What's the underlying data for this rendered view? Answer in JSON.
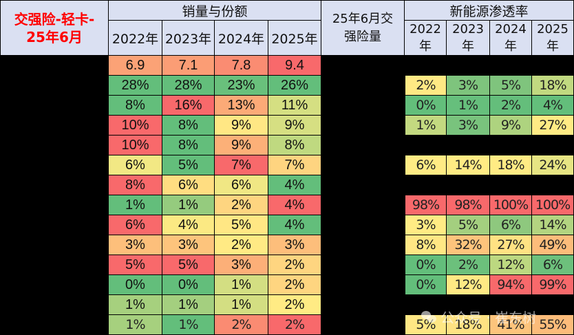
{
  "header": {
    "title_line1": "交强险-轻卡-",
    "title_line2": "25年6月",
    "sales_group": "销量与份额",
    "sales_years": [
      "2022年",
      "2023年",
      "2024年",
      "2025年"
    ],
    "volume_line1": "25年6月交",
    "volume_line2": "强险量",
    "nev_group": "新能源渗透率",
    "nev_years_top": [
      "2022",
      "2023",
      "2024",
      "2025"
    ],
    "nev_years_bottom": [
      "年",
      "年",
      "年",
      "年"
    ]
  },
  "colors": {
    "header_bg": "#dae0f2",
    "title_red": "#ff0000",
    "red": "#f8696b",
    "orange": "#fbaa77",
    "light_orange": "#fdc67c",
    "yellow": "#ffeb84",
    "yellow_green": "#d3de82",
    "light_green": "#a6d07e",
    "green": "#63be7b"
  },
  "rows": [
    {
      "sales": [
        "6.9",
        "7.1",
        "7.8",
        "9.4"
      ],
      "sales_colors": [
        "#fba276",
        "#fb9d75",
        "#fa8c72",
        "#f8696b"
      ],
      "nev": null,
      "nev_colors": null
    },
    {
      "sales": [
        "28%",
        "28%",
        "23%",
        "26%"
      ],
      "sales_colors": [
        "#63be7b",
        "#63be7b",
        "#69c07c",
        "#63be7b"
      ],
      "nev": [
        "2%",
        "3%",
        "5%",
        "18%"
      ],
      "nev_colors": [
        "#ffe984",
        "#7ec47d",
        "#7fc47d",
        "#c1d980"
      ]
    },
    {
      "sales": [
        "8%",
        "16%",
        "13%",
        "11%"
      ],
      "sales_colors": [
        "#63be7b",
        "#f8696b",
        "#fcaa77",
        "#d5df82"
      ],
      "nev": [
        "0%",
        "1%",
        "2%",
        "4%"
      ],
      "nev_colors": [
        "#63be7b",
        "#66bf7c",
        "#64be7b",
        "#63be7b"
      ]
    },
    {
      "sales": [
        "10%",
        "8%",
        "9%",
        "9%"
      ],
      "sales_colors": [
        "#f8696b",
        "#63be7b",
        "#ffe784",
        "#d6df82"
      ],
      "nev": [
        "1%",
        "3%",
        "9%",
        "27%"
      ],
      "nev_colors": [
        "#c3d980",
        "#79c37d",
        "#aed37f",
        "#ffeb84"
      ]
    },
    {
      "sales": [
        "10%",
        "8%",
        "9%",
        "8%"
      ],
      "sales_colors": [
        "#f8696b",
        "#63be7b",
        "#fcb078",
        "#bfd980"
      ],
      "nev": null,
      "nev_colors": null
    },
    {
      "sales": [
        "6%",
        "5%",
        "7%",
        "7%"
      ],
      "sales_colors": [
        "#f2e884",
        "#63be7b",
        "#f8696b",
        "#fed480"
      ],
      "nev": [
        "6%",
        "14%",
        "18%",
        "24%"
      ],
      "nev_colors": [
        "#ffeb84",
        "#ffeb84",
        "#ffeb84",
        "#e7e583"
      ]
    },
    {
      "sales": [
        "8%",
        "6%",
        "6%",
        "4%"
      ],
      "sales_colors": [
        "#f8696b",
        "#ffdd81",
        "#f0e784",
        "#63be7b"
      ],
      "nev": null,
      "nev_colors": null
    },
    {
      "sales": [
        "1%",
        "1%",
        "2%",
        "4%"
      ],
      "sales_colors": [
        "#63be7b",
        "#95cb7e",
        "#fed580",
        "#f8696b"
      ],
      "nev": [
        "98%",
        "98%",
        "100%",
        "100%"
      ],
      "nev_colors": [
        "#f8696b",
        "#f8696b",
        "#f8696b",
        "#f8696b"
      ]
    },
    {
      "sales": [
        "6%",
        "4%",
        "5%",
        "4%"
      ],
      "sales_colors": [
        "#f8696b",
        "#fbe983",
        "#ffe784",
        "#63be7b"
      ],
      "nev": [
        "3%",
        "5%",
        "6%",
        "14%"
      ],
      "nev_colors": [
        "#ffeb84",
        "#a4cf7f",
        "#8ec87e",
        "#b3d480"
      ]
    },
    {
      "sales": [
        "3%",
        "3%",
        "2%",
        "3%"
      ],
      "sales_colors": [
        "#fdbf7b",
        "#fdc47c",
        "#ffea84",
        "#fdbe7b"
      ],
      "nev": [
        "8%",
        "32%",
        "27%",
        "49%"
      ],
      "nev_colors": [
        "#ffe784",
        "#fdc47c",
        "#ffe283",
        "#fcbc7a"
      ]
    },
    {
      "sales": [
        "5%",
        "5%",
        "3%",
        "2%"
      ],
      "sales_colors": [
        "#f8696b",
        "#f8696b",
        "#fcaf78",
        "#fed580"
      ],
      "nev": [
        "0%",
        "2%",
        "12%",
        "6%"
      ],
      "nev_colors": [
        "#63be7b",
        "#6cc07c",
        "#bcd880",
        "#6dc07c"
      ]
    },
    {
      "sales": [
        "0%",
        "0%",
        "1%",
        "2%"
      ],
      "sales_colors": [
        "#63be7b",
        "#63be7b",
        "#d3de82",
        "#fed580"
      ],
      "nev": [
        "0%",
        "12%",
        "94%",
        "99%"
      ],
      "nev_colors": [
        "#63be7b",
        "#ffe984",
        "#f8696b",
        "#f8696b"
      ]
    },
    {
      "sales": [
        "1%",
        "1%",
        "1%",
        "2%"
      ],
      "sales_colors": [
        "#a6d07e",
        "#a4cf7f",
        "#d3de82",
        "#ffeb84"
      ],
      "nev": null,
      "nev_colors": null
    },
    {
      "sales": [
        "1%",
        "1%",
        "2%",
        "2%"
      ],
      "sales_colors": [
        "#a6d07e",
        "#63be7b",
        "#fa8b72",
        "#f8696b"
      ],
      "nev": [
        "5%",
        "18%",
        "41%",
        "55%"
      ],
      "nev_colors": [
        "#ffe784",
        "#ffe283",
        "#fdc47c",
        "#fcbc7a"
      ]
    }
  ],
  "watermark": "公众号 · 崔东树"
}
